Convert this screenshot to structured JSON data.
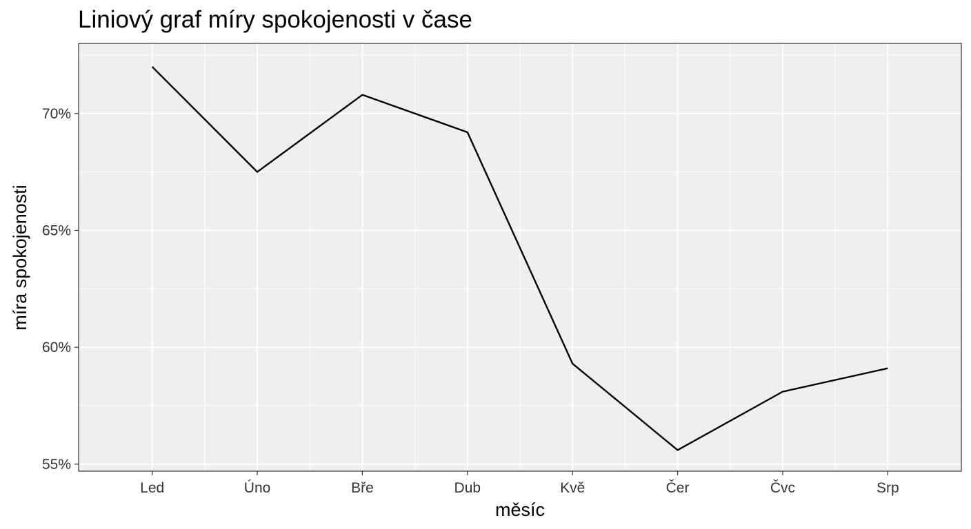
{
  "chart_data": {
    "type": "line",
    "title": "Liniový graf míry spokojenosti v čase",
    "xlabel": "měsíc",
    "ylabel": "míra spokojenosti",
    "categories": [
      "Led",
      "Úno",
      "Bře",
      "Dub",
      "Kvě",
      "Čer",
      "Čvc",
      "Srp"
    ],
    "series": [
      {
        "values": [
          72.0,
          67.5,
          70.8,
          69.2,
          59.3,
          55.6,
          58.1,
          59.1
        ]
      }
    ],
    "yticks": [
      55,
      60,
      65,
      70
    ],
    "ytick_labels": [
      "55%",
      "60%",
      "65%",
      "70%"
    ],
    "ylim": [
      54.7,
      73.0
    ],
    "grid": true,
    "legend": "none",
    "colors": {
      "panel": "#efefef",
      "grid": "#ffffff",
      "line": "#000000",
      "border": "#333333"
    }
  }
}
